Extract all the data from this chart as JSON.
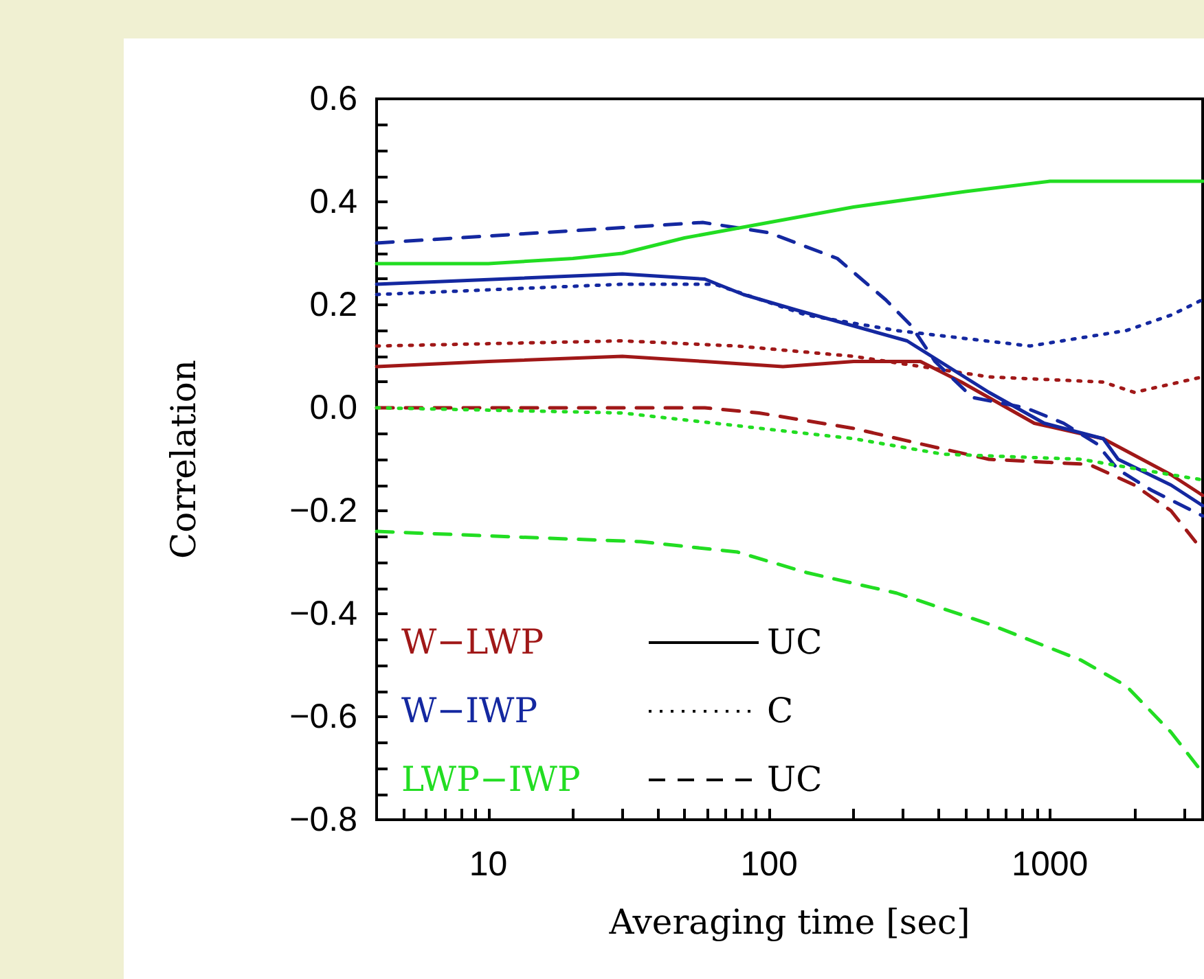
{
  "chart_data": {
    "type": "line",
    "xlabel": "Averaging time [sec]",
    "ylabel": "Correlation",
    "log": "x",
    "xlim": [
      4,
      3500
    ],
    "xticks": [
      {
        "value": 5,
        "label": null
      },
      {
        "value": 6,
        "label": null
      },
      {
        "value": 7,
        "label": null
      },
      {
        "value": 8,
        "label": null
      },
      {
        "value": 9,
        "label": null
      },
      10,
      {
        "value": 20,
        "label": null
      },
      {
        "value": 30,
        "label": null
      },
      {
        "value": 40,
        "label": null
      },
      {
        "value": 50,
        "label": null
      },
      {
        "value": 60,
        "label": null
      },
      {
        "value": 70,
        "label": null
      },
      {
        "value": 80,
        "label": null
      },
      {
        "value": 90,
        "label": null
      },
      100,
      {
        "value": 200,
        "label": null
      },
      {
        "value": 300,
        "label": null
      },
      {
        "value": 400,
        "label": null
      },
      {
        "value": 500,
        "label": null
      },
      {
        "value": 600,
        "label": null
      },
      {
        "value": 700,
        "label": null
      },
      {
        "value": 800,
        "label": null
      },
      {
        "value": 900,
        "label": null
      },
      1000,
      {
        "value": 2000,
        "label": null
      },
      {
        "value": 3000,
        "label": null
      }
    ],
    "ylim": [
      -0.8,
      0.6
    ],
    "yticks": [
      {
        "value": -0.8,
        "label": "−0.8"
      },
      {
        "value": -0.75,
        "label": null
      },
      {
        "value": -0.7,
        "label": null
      },
      {
        "value": -0.65,
        "label": null
      },
      {
        "value": -0.6,
        "label": "−0.6"
      },
      {
        "value": -0.55,
        "label": null
      },
      {
        "value": -0.5,
        "label": null
      },
      {
        "value": -0.45,
        "label": null
      },
      {
        "value": -0.4,
        "label": "−0.4"
      },
      {
        "value": -0.35,
        "label": null
      },
      {
        "value": -0.3,
        "label": null
      },
      {
        "value": -0.25,
        "label": null
      },
      {
        "value": -0.2,
        "label": "−0.2"
      },
      {
        "value": -0.15,
        "label": null
      },
      {
        "value": -0.1,
        "label": null
      },
      {
        "value": -0.05,
        "label": null
      },
      {
        "value": 0,
        "label": "0.0"
      },
      {
        "value": 0.05,
        "label": null
      },
      {
        "value": 0.1,
        "label": null
      },
      {
        "value": 0.15,
        "label": null
      },
      {
        "value": 0.2,
        "label": "0.2"
      },
      {
        "value": 0.25,
        "label": null
      },
      {
        "value": 0.3,
        "label": null
      },
      {
        "value": 0.35,
        "label": null
      },
      {
        "value": 0.4,
        "label": "0.4"
      },
      {
        "value": 0.45,
        "label": null
      },
      {
        "value": 0.5,
        "label": null
      },
      {
        "value": 0.55,
        "label": null
      },
      {
        "value": 0.6,
        "label": "0.6"
      }
    ],
    "grid": false,
    "marker": "none",
    "annotations": [
      "W−LWP",
      "W−IWP",
      "LWP−IWP",
      "UC",
      "C",
      "UC"
    ],
    "series": [
      {
        "color": "#a01818",
        "line_style": "solid",
        "x": [
          4,
          10,
          30,
          59,
          112,
          200,
          346,
          484,
          880,
          1550,
          2700,
          3500
        ],
        "values": [
          0.08,
          0.09,
          0.1,
          0.09,
          0.08,
          0.09,
          0.09,
          0.05,
          -0.03,
          -0.06,
          -0.13,
          -0.17
        ]
      },
      {
        "color": "#a01818",
        "line_style": "dotted",
        "x": [
          4,
          30,
          77,
          200,
          607,
          1550,
          2000,
          3500
        ],
        "values": [
          0.12,
          0.13,
          0.12,
          0.1,
          0.06,
          0.05,
          0.03,
          0.06
        ]
      },
      {
        "color": "#a01818",
        "line_style": "dashed",
        "x": [
          4,
          30,
          59,
          92,
          200,
          346,
          607,
          1380,
          2000,
          2700,
          3300
        ],
        "values": [
          0.0,
          0.0,
          0.0,
          -0.01,
          -0.04,
          -0.07,
          -0.1,
          -0.11,
          -0.15,
          -0.2,
          -0.26
        ]
      },
      {
        "color": "#1428a0",
        "line_style": "solid",
        "x": [
          4,
          30,
          59,
          81,
          125,
          310,
          607,
          955,
          1550,
          1750,
          2700,
          3500
        ],
        "values": [
          0.24,
          0.26,
          0.25,
          0.22,
          0.19,
          0.13,
          0.03,
          -0.03,
          -0.06,
          -0.1,
          -0.15,
          -0.19
        ]
      },
      {
        "color": "#1428a0",
        "line_style": "dotted",
        "x": [
          4,
          30,
          64,
          136,
          285,
          850,
          1870,
          2700,
          3500
        ],
        "values": [
          0.22,
          0.24,
          0.24,
          0.18,
          0.15,
          0.12,
          0.15,
          0.18,
          0.21
        ]
      },
      {
        "color": "#1428a0",
        "line_style": "dashed",
        "x": [
          4,
          30,
          58,
          100,
          175,
          260,
          320,
          390,
          530,
          820,
          1120,
          1470,
          1750,
          2300,
          3500
        ],
        "values": [
          0.32,
          0.35,
          0.36,
          0.34,
          0.29,
          0.21,
          0.16,
          0.09,
          0.02,
          0.0,
          -0.03,
          -0.07,
          -0.12,
          -0.16,
          -0.21
        ]
      },
      {
        "color": "#22dd22",
        "line_style": "solid",
        "x": [
          4,
          10,
          20,
          30,
          50,
          100,
          200,
          500,
          1000,
          1800,
          3500
        ],
        "values": [
          0.28,
          0.28,
          0.29,
          0.3,
          0.33,
          0.36,
          0.39,
          0.42,
          0.44,
          0.44,
          0.44
        ]
      },
      {
        "color": "#22dd22",
        "line_style": "dotted",
        "x": [
          4,
          30,
          64,
          200,
          416,
          1290,
          2700,
          3500
        ],
        "values": [
          0.0,
          -0.01,
          -0.03,
          -0.06,
          -0.09,
          -0.1,
          -0.13,
          -0.14
        ]
      },
      {
        "color": "#22dd22",
        "line_style": "dashed",
        "x": [
          4,
          11.4,
          35,
          77,
          136,
          285,
          607,
          1290,
          1870,
          2700,
          3400
        ],
        "values": [
          -0.24,
          -0.25,
          -0.26,
          -0.28,
          -0.32,
          -0.36,
          -0.42,
          -0.49,
          -0.54,
          -0.63,
          -0.7
        ]
      }
    ]
  }
}
